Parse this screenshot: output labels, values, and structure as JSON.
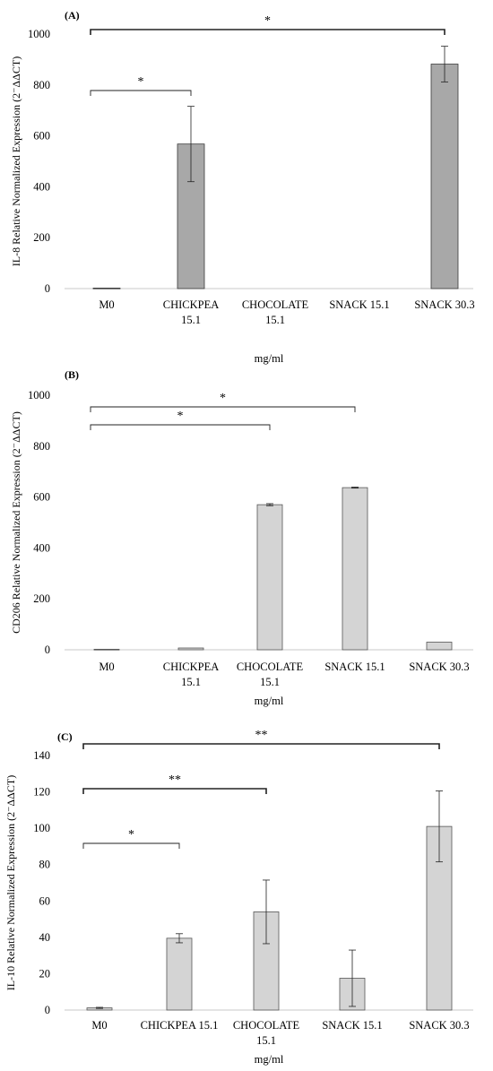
{
  "chart_data": [
    {
      "type": "bar",
      "panel_label": "(A)",
      "ylabel": "IL-8 Relative Normalized Expression",
      "ylabel_formula": "(2⁻ΔΔCT)",
      "xlabel": "mg/ml",
      "categories": [
        [
          "M0"
        ],
        [
          "CHICKPEA",
          "15.1"
        ],
        [
          "CHOCOLATE",
          "15.1"
        ],
        [
          "SNACK 15.1"
        ],
        [
          "SNACK 30.3"
        ]
      ],
      "values": [
        2,
        568,
        0,
        0,
        882
      ],
      "errors": [
        0,
        148,
        0,
        0,
        70
      ],
      "yticks": [
        "0",
        "200",
        "400",
        "600",
        "800",
        "1000"
      ],
      "ylim": [
        0,
        1000
      ],
      "bar_color": "#a8a8a8",
      "significance": [
        {
          "from": 0,
          "to": 1,
          "label": "*"
        },
        {
          "from": 0,
          "to": 4,
          "label": "*"
        }
      ]
    },
    {
      "type": "bar",
      "panel_label": "(B)",
      "ylabel": "CD206 Relative Normalized Expression",
      "ylabel_formula": "(2⁻ΔΔCT)",
      "xlabel": "mg/ml",
      "categories": [
        [
          "M0"
        ],
        [
          "CHICKPEA",
          "15.1"
        ],
        [
          "CHOCOLATE",
          "15.1"
        ],
        [
          "SNACK 15.1"
        ],
        [
          "SNACK 30.3"
        ]
      ],
      "values": [
        2,
        7,
        570,
        637,
        30
      ],
      "errors": [
        0,
        0,
        4,
        2,
        0
      ],
      "yticks": [
        "0",
        "200",
        "400",
        "600",
        "800",
        "1000"
      ],
      "ylim": [
        0,
        1000
      ],
      "bar_color": "#d4d4d4",
      "significance": [
        {
          "from": 0,
          "to": 2,
          "label": "*"
        },
        {
          "from": 0,
          "to": 3,
          "label": "*"
        }
      ]
    },
    {
      "type": "bar",
      "panel_label": "(C)",
      "ylabel": "IL-10 Relative Normalized Expression",
      "ylabel_formula": "(2⁻ΔΔCT)",
      "xlabel": "mg/ml",
      "categories": [
        [
          "M0"
        ],
        [
          "CHICKPEA 15.1"
        ],
        [
          "CHOCOLATE",
          "15.1"
        ],
        [
          "SNACK 15.1"
        ],
        [
          "SNACK 30.3"
        ]
      ],
      "values": [
        1.2,
        39.5,
        54,
        17.5,
        101
      ],
      "errors": [
        0.3,
        2.5,
        17.5,
        15.5,
        19.5
      ],
      "yticks": [
        "0",
        "20",
        "40",
        "60",
        "80",
        "100",
        "120",
        "140"
      ],
      "ylim": [
        0,
        140
      ],
      "bar_color": "#d4d4d4",
      "significance": [
        {
          "from": 0,
          "to": 1,
          "label": "*"
        },
        {
          "from": 0,
          "to": 2,
          "label": "**"
        },
        {
          "from": 0,
          "to": 4,
          "label": "**"
        }
      ]
    }
  ]
}
